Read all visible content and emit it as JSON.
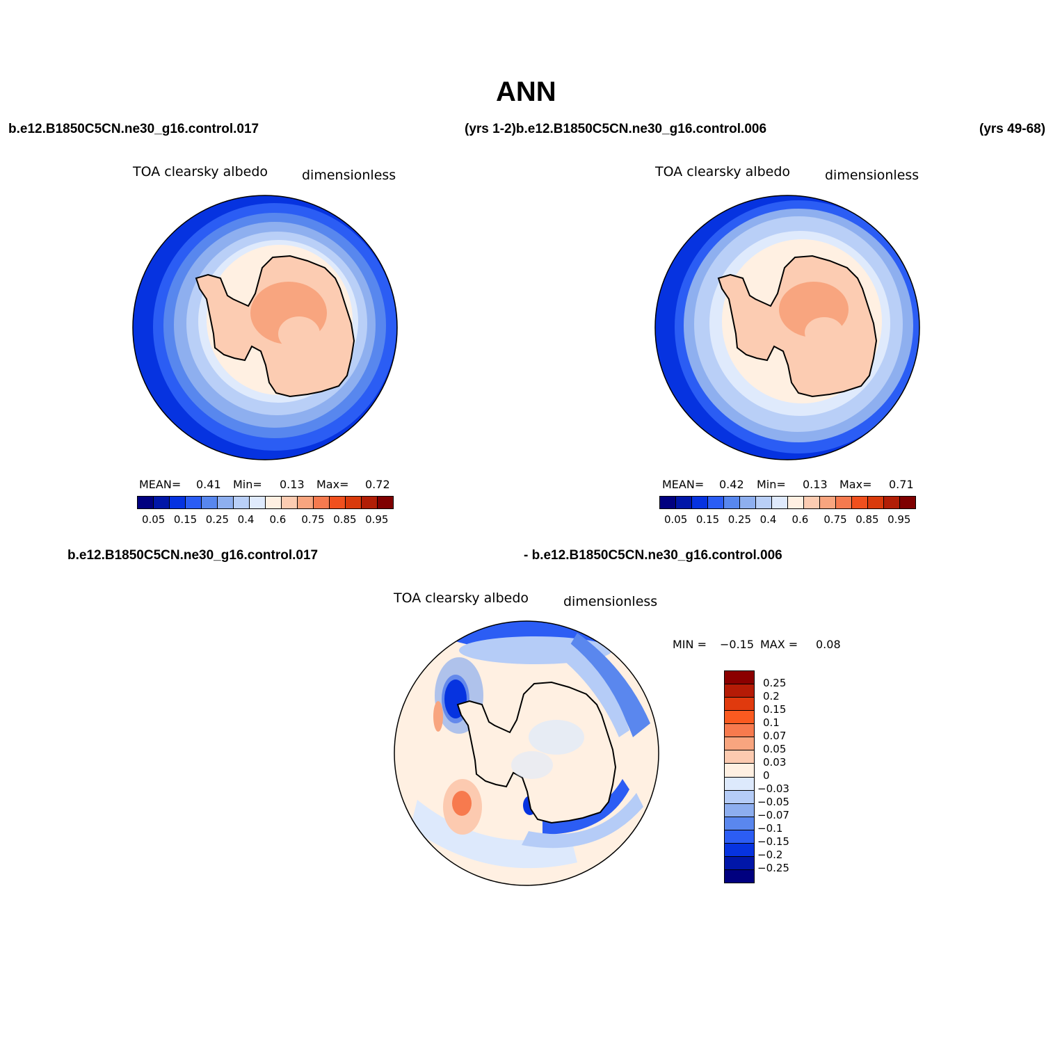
{
  "title": "ANN",
  "top_left_case": "b.e12.B1850C5CN.ne30_g16.control.017",
  "top_mid_case": "(yrs 1-2)b.e12.B1850C5CN.ne30_g16.control.006",
  "top_right_case": "(yrs 49-68)",
  "bottom_left_case": "b.e12.B1850C5CN.ne30_g16.control.017",
  "bottom_right_case": "- b.e12.B1850C5CN.ne30_g16.control.006",
  "panels": [
    {
      "variable": "TOA clearsky albedo",
      "units": "dimensionless",
      "stats": {
        "mean_label": "MEAN=",
        "mean": "0.41",
        "min_label": "Min=",
        "min": "0.13",
        "max_label": "Max=",
        "max": "0.72"
      }
    },
    {
      "variable": "TOA clearsky albedo",
      "units": "dimensionless",
      "stats": {
        "mean_label": "MEAN=",
        "mean": "0.42",
        "min_label": "Min=",
        "min": "0.13",
        "max_label": "Max=",
        "max": "0.71"
      }
    },
    {
      "variable": "TOA clearsky albedo",
      "units": "dimensionless",
      "stats": {
        "min_label": "MIN =",
        "min": "−0.15",
        "max_label": "MAX =",
        "max": "0.08"
      }
    }
  ],
  "colorbar_main": {
    "ticks": [
      "0.05",
      "0.15",
      "0.25",
      "0.4",
      "0.6",
      "0.75",
      "0.85",
      "0.95"
    ],
    "colors": [
      "#00007f",
      "#0016a8",
      "#0633e0",
      "#2b5df4",
      "#5887ee",
      "#8eafef",
      "#b9cff7",
      "#dfeafc",
      "#fff0e2",
      "#fcccb2",
      "#f8a57f",
      "#f57a4f",
      "#f0501e",
      "#d93a0c",
      "#b11e06",
      "#7f0000"
    ]
  },
  "colorbar_diff": {
    "ticks": [
      "0.25",
      "0.2",
      "0.15",
      "0.1",
      "0.07",
      "0.05",
      "0.03",
      "0",
      "−0.03",
      "−0.05",
      "−0.07",
      "−0.1",
      "−0.15",
      "−0.2",
      "−0.25"
    ],
    "colors": [
      "#8b0000",
      "#b51b06",
      "#e03a0e",
      "#fa5a20",
      "#f77a4e",
      "#f8a57f",
      "#fccab0",
      "#fff0e2",
      "#dde9fc",
      "#b5ccf7",
      "#8daeef",
      "#5a87ee",
      "#2c5df4",
      "#0633e0",
      "#0016a8",
      "#00007f"
    ]
  }
}
